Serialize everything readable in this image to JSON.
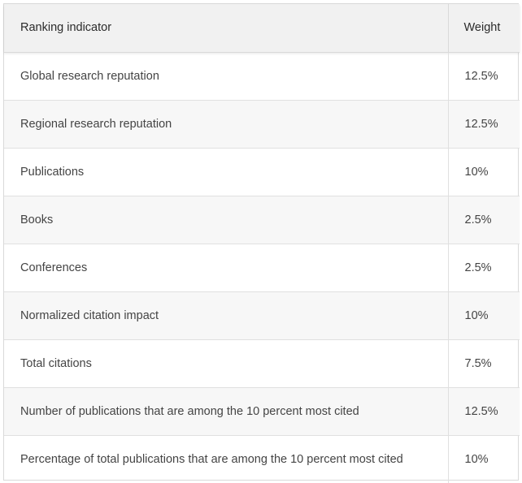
{
  "table": {
    "headers": {
      "indicator": "Ranking indicator",
      "weight": "Weight"
    },
    "rows": [
      {
        "indicator": "Global research reputation",
        "weight": "12.5%"
      },
      {
        "indicator": "Regional research reputation",
        "weight": "12.5%"
      },
      {
        "indicator": "Publications",
        "weight": "10%"
      },
      {
        "indicator": "Books",
        "weight": "2.5%"
      },
      {
        "indicator": "Conferences",
        "weight": "2.5%"
      },
      {
        "indicator": "Normalized citation impact",
        "weight": "10%"
      },
      {
        "indicator": "Total citations",
        "weight": "7.5%"
      },
      {
        "indicator": "Number of publications that are among the 10 percent most cited",
        "weight": "12.5%"
      },
      {
        "indicator": "Percentage of total publications that are among the 10 percent most cited",
        "weight": "10%"
      }
    ]
  }
}
